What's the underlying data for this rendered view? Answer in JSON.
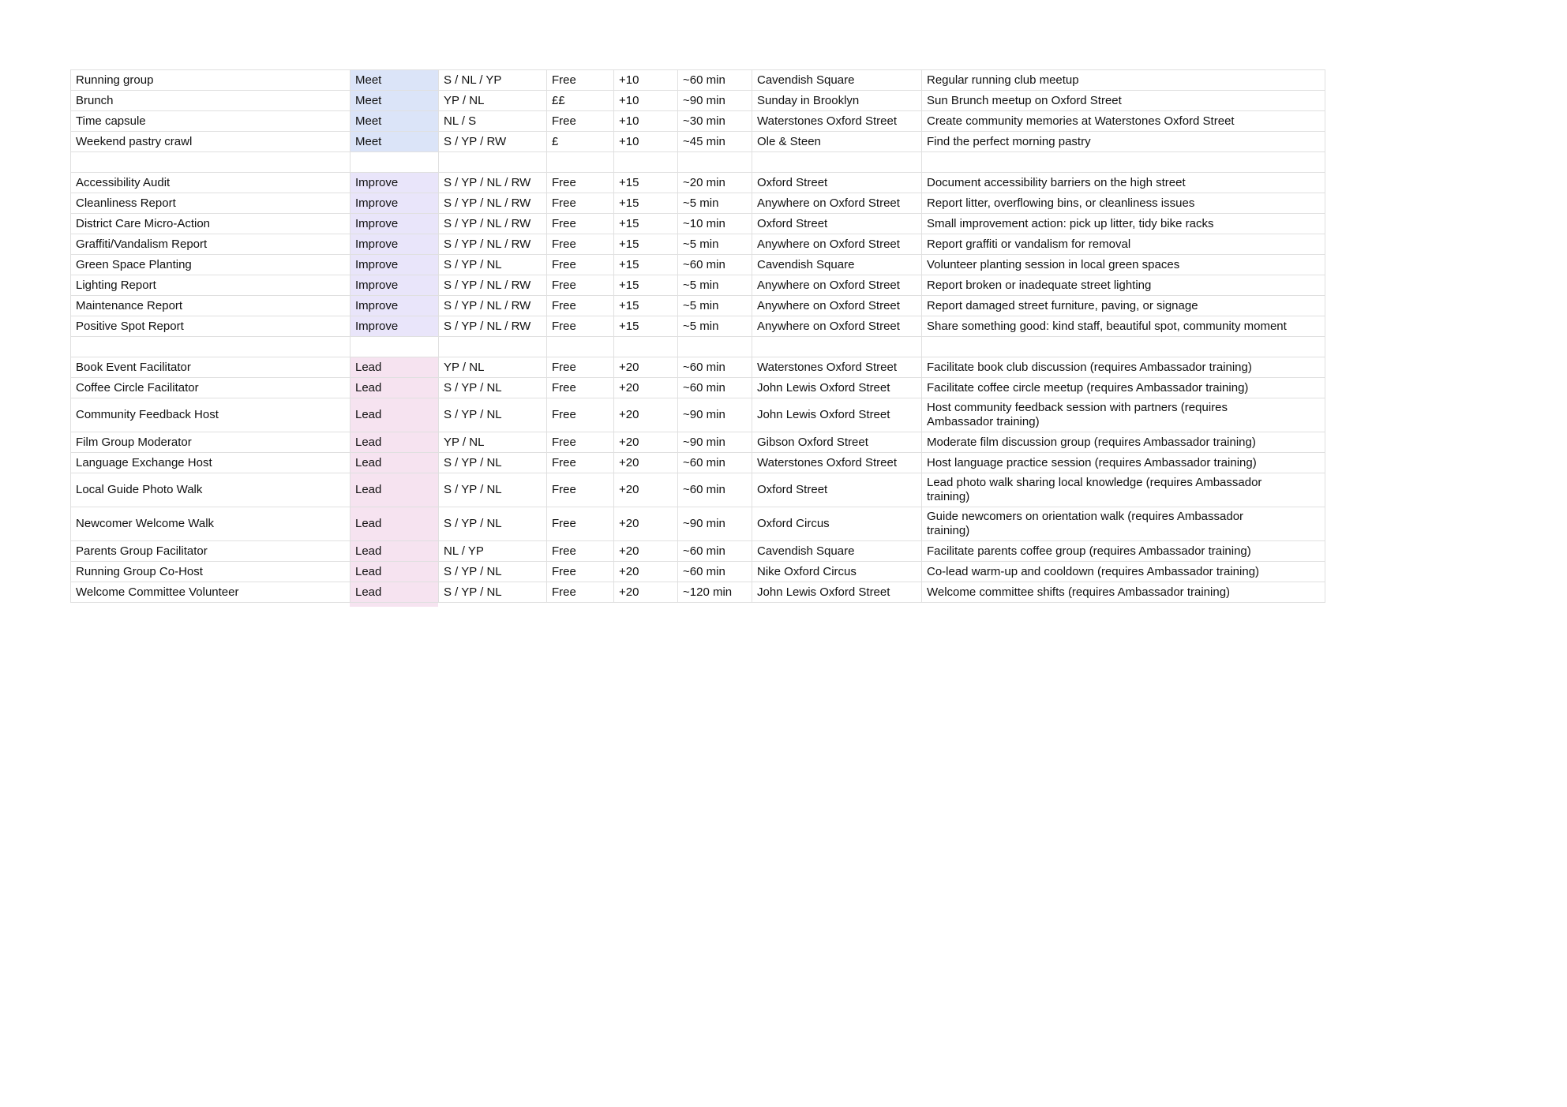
{
  "page": {
    "background": "#ffffff"
  },
  "table": {
    "category_colors": {
      "Meet": "#dbe4f8",
      "Improve": "#e9e5fa",
      "Lead": "#f6e3f0"
    },
    "grid_line_color": "#e0e0e0",
    "column_keys": [
      "name",
      "category",
      "audience",
      "cost",
      "points",
      "duration",
      "location",
      "description"
    ],
    "sections": [
      {
        "category": "Meet",
        "rows": [
          {
            "name": "Running group",
            "category": "Meet",
            "audience": "S / NL / YP",
            "cost": "Free",
            "points": "+10",
            "duration": "~60 min",
            "location": "Cavendish Square",
            "description": "Regular running club meetup"
          },
          {
            "name": "Brunch",
            "category": "Meet",
            "audience": "YP / NL",
            "cost": "££",
            "points": "+10",
            "duration": "~90 min",
            "location": "Sunday in Brooklyn",
            "description": "Sun Brunch meetup on Oxford Street"
          },
          {
            "name": "Time capsule",
            "category": "Meet",
            "audience": "NL / S",
            "cost": "Free",
            "points": "+10",
            "duration": "~30 min",
            "location": "Waterstones Oxford Street",
            "description": "Create community memories at Waterstones Oxford Street"
          },
          {
            "name": "Weekend pastry crawl",
            "category": "Meet",
            "audience": "S / YP / RW",
            "cost": "£",
            "points": "+10",
            "duration": "~45 min",
            "location": "Ole & Steen",
            "description": "Find the perfect morning pastry"
          }
        ]
      },
      {
        "category": "Improve",
        "rows": [
          {
            "name": "Accessibility Audit",
            "category": "Improve",
            "audience": "S / YP / NL / RW",
            "cost": "Free",
            "points": "+15",
            "duration": "~20 min",
            "location": "Oxford Street",
            "description": "Document accessibility barriers on the high street"
          },
          {
            "name": "Cleanliness Report",
            "category": "Improve",
            "audience": "S / YP / NL / RW",
            "cost": "Free",
            "points": "+15",
            "duration": "~5 min",
            "location": "Anywhere on Oxford Street",
            "description": "Report litter, overflowing bins, or cleanliness issues"
          },
          {
            "name": "District Care Micro-Action",
            "category": "Improve",
            "audience": "S / YP / NL / RW",
            "cost": "Free",
            "points": "+15",
            "duration": "~10 min",
            "location": "Oxford Street",
            "description": "Small improvement action: pick up litter, tidy bike racks"
          },
          {
            "name": "Graffiti/Vandalism Report",
            "category": "Improve",
            "audience": "S / YP / NL / RW",
            "cost": "Free",
            "points": "+15",
            "duration": "~5 min",
            "location": "Anywhere on Oxford Street",
            "description": "Report graffiti or vandalism for removal"
          },
          {
            "name": "Green Space Planting",
            "category": "Improve",
            "audience": "S / YP / NL",
            "cost": "Free",
            "points": "+15",
            "duration": "~60 min",
            "location": "Cavendish Square",
            "description": "Volunteer planting session in local green spaces"
          },
          {
            "name": "Lighting Report",
            "category": "Improve",
            "audience": "S / YP / NL / RW",
            "cost": "Free",
            "points": "+15",
            "duration": "~5 min",
            "location": "Anywhere on Oxford Street",
            "description": "Report broken or inadequate street lighting"
          },
          {
            "name": "Maintenance Report",
            "category": "Improve",
            "audience": "S / YP / NL / RW",
            "cost": "Free",
            "points": "+15",
            "duration": "~5 min",
            "location": "Anywhere on Oxford Street",
            "description": "Report damaged street furniture, paving, or signage"
          },
          {
            "name": "Positive Spot Report",
            "category": "Improve",
            "audience": "S / YP / NL / RW",
            "cost": "Free",
            "points": "+15",
            "duration": "~5 min",
            "location": "Anywhere on Oxford Street",
            "description": "Share something good: kind staff, beautiful spot, community moment"
          }
        ]
      },
      {
        "category": "Lead",
        "rows": [
          {
            "name": "Book Event Facilitator",
            "category": "Lead",
            "audience": "YP / NL",
            "cost": "Free",
            "points": "+20",
            "duration": "~60 min",
            "location": "Waterstones Oxford Street",
            "description": "Facilitate book club discussion (requires Ambassador training)"
          },
          {
            "name": "Coffee Circle Facilitator",
            "category": "Lead",
            "audience": "S / YP / NL",
            "cost": "Free",
            "points": "+20",
            "duration": "~60 min",
            "location": "John Lewis Oxford Street",
            "description": "Facilitate coffee circle meetup (requires Ambassador training)"
          },
          {
            "name": "Community Feedback Host",
            "category": "Lead",
            "audience": "S / YP / NL",
            "cost": "Free",
            "points": "+20",
            "duration": "~90 min",
            "location": "John Lewis Oxford Street",
            "description": "Host community feedback session with partners (requires Ambassador training)"
          },
          {
            "name": "Film Group Moderator",
            "category": "Lead",
            "audience": "YP / NL",
            "cost": "Free",
            "points": "+20",
            "duration": "~90 min",
            "location": "Gibson Oxford Street",
            "description": "Moderate film discussion group (requires Ambassador training)"
          },
          {
            "name": "Language Exchange Host",
            "category": "Lead",
            "audience": "S / YP / NL",
            "cost": "Free",
            "points": "+20",
            "duration": "~60 min",
            "location": "Waterstones Oxford Street",
            "description": "Host language practice session (requires Ambassador training)"
          },
          {
            "name": "Local Guide Photo Walk",
            "category": "Lead",
            "audience": "S / YP / NL",
            "cost": "Free",
            "points": "+20",
            "duration": "~60 min",
            "location": "Oxford Street",
            "description": "Lead photo walk sharing local knowledge (requires Ambassador training)"
          },
          {
            "name": "Newcomer Welcome Walk",
            "category": "Lead",
            "audience": "S / YP / NL",
            "cost": "Free",
            "points": "+20",
            "duration": "~90 min",
            "location": "Oxford Circus",
            "description": "Guide newcomers on orientation walk (requires Ambassador training)"
          },
          {
            "name": "Parents Group Facilitator",
            "category": "Lead",
            "audience": "NL / YP",
            "cost": "Free",
            "points": "+20",
            "duration": "~60 min",
            "location": "Cavendish Square",
            "description": "Facilitate parents coffee group (requires Ambassador training)"
          },
          {
            "name": "Running Group Co-Host",
            "category": "Lead",
            "audience": "S / YP / NL",
            "cost": "Free",
            "points": "+20",
            "duration": "~60 min",
            "location": "Nike Oxford Circus",
            "description": "Co-lead warm-up and cooldown (requires Ambassador training)"
          },
          {
            "name": "Welcome Committee Volunteer",
            "category": "Lead",
            "audience": "S / YP / NL",
            "cost": "Free",
            "points": "+20",
            "duration": "~120 min",
            "location": "John Lewis Oxford Street",
            "description": "Welcome committee shifts (requires Ambassador training)"
          }
        ]
      }
    ]
  }
}
